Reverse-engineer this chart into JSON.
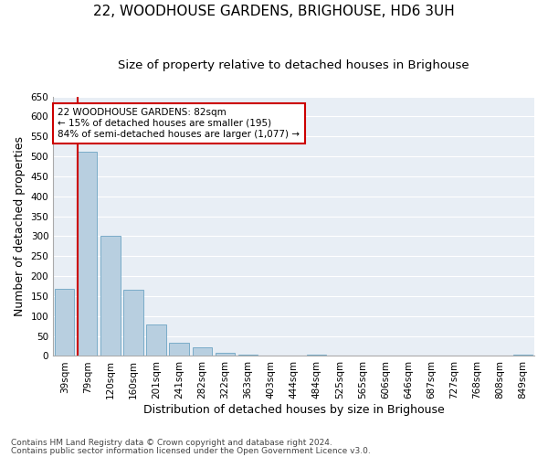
{
  "title": "22, WOODHOUSE GARDENS, BRIGHOUSE, HD6 3UH",
  "subtitle": "Size of property relative to detached houses in Brighouse",
  "xlabel": "Distribution of detached houses by size in Brighouse",
  "ylabel": "Number of detached properties",
  "categories": [
    "39sqm",
    "79sqm",
    "120sqm",
    "160sqm",
    "201sqm",
    "241sqm",
    "282sqm",
    "322sqm",
    "363sqm",
    "403sqm",
    "444sqm",
    "484sqm",
    "525sqm",
    "565sqm",
    "606sqm",
    "646sqm",
    "687sqm",
    "727sqm",
    "768sqm",
    "808sqm",
    "849sqm"
  ],
  "values": [
    168,
    511,
    302,
    166,
    78,
    33,
    21,
    7,
    4,
    0,
    0,
    4,
    0,
    0,
    0,
    0,
    0,
    0,
    0,
    0,
    4
  ],
  "bar_color": "#b8cfe0",
  "bar_edge_color": "#7aacc8",
  "vline_color": "#cc0000",
  "annotation_text": "22 WOODHOUSE GARDENS: 82sqm\n← 15% of detached houses are smaller (195)\n84% of semi-detached houses are larger (1,077) →",
  "annotation_box_color": "#ffffff",
  "annotation_box_edge_color": "#cc0000",
  "ylim": [
    0,
    650
  ],
  "yticks": [
    0,
    50,
    100,
    150,
    200,
    250,
    300,
    350,
    400,
    450,
    500,
    550,
    600,
    650
  ],
  "background_color": "#e8eef5",
  "grid_color": "#ffffff",
  "footer_line1": "Contains HM Land Registry data © Crown copyright and database right 2024.",
  "footer_line2": "Contains public sector information licensed under the Open Government Licence v3.0.",
  "title_fontsize": 11,
  "subtitle_fontsize": 9.5,
  "tick_fontsize": 7.5,
  "label_fontsize": 9,
  "footer_fontsize": 6.5
}
